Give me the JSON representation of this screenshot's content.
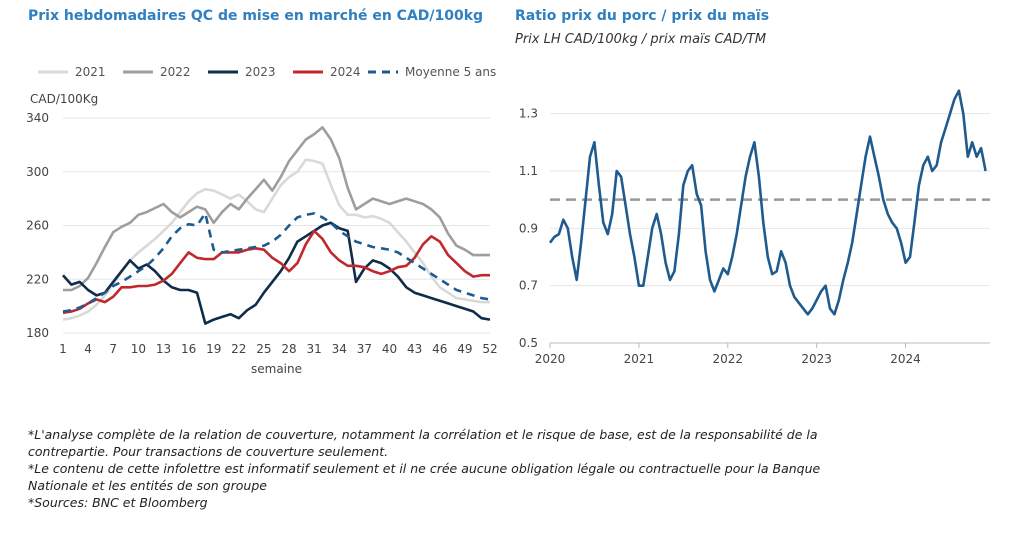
{
  "left_chart_title": "Prix hebdomadaires QC de mise en marché en CAD/100kg",
  "right_chart_title": "Ratio prix du porc / prix du maïs",
  "right_chart_subtitle": "Prix LH CAD/100kg  /  prix maïs CAD/TM",
  "footnotes": [
    "*L'analyse complète de la relation de couverture, notamment la corrélation et le risque de base, est de la responsabilité de la contrepartie. Pour transactions de couverture seulement.",
    "*Le contenu de cette infolettre est informatif seulement et il ne crée aucune obligation légale ou contractuelle pour la Banque Nationale et les entités de son groupe",
    "*Sources: BNC et Bloomberg"
  ],
  "colors": {
    "title": "#2f7fc1",
    "s2021": "#d9d9d9",
    "s2022": "#9e9e9e",
    "s2023": "#0f2d4a",
    "s2024": "#c0282d",
    "avg": "#1f5b8e",
    "ratio": "#1f5b8e",
    "ref": "#999999"
  },
  "chart_data": [
    {
      "type": "line",
      "title": "Prix hebdomadaires QC de mise en marché en CAD/100kg",
      "ylabel": "CAD/100Kg",
      "xlabel": "semaine",
      "ylim": [
        180,
        340
      ],
      "yticks": [
        180,
        220,
        260,
        300,
        340
      ],
      "xticks": [
        1,
        4,
        7,
        10,
        13,
        16,
        19,
        22,
        25,
        28,
        31,
        34,
        37,
        40,
        43,
        46,
        49,
        52
      ],
      "grid": "horizontal",
      "legend_position": "top",
      "x": [
        1,
        2,
        3,
        4,
        5,
        6,
        7,
        8,
        9,
        10,
        11,
        12,
        13,
        14,
        15,
        16,
        17,
        18,
        19,
        20,
        21,
        22,
        23,
        24,
        25,
        26,
        27,
        28,
        29,
        30,
        31,
        32,
        33,
        34,
        35,
        36,
        37,
        38,
        39,
        40,
        41,
        42,
        43,
        44,
        45,
        46,
        47,
        48,
        49,
        50,
        51,
        52
      ],
      "series": [
        {
          "name": "2021",
          "values": [
            190,
            191,
            193,
            196,
            201,
            208,
            216,
            226,
            234,
            240,
            245,
            250,
            256,
            262,
            270,
            278,
            284,
            287,
            286,
            283,
            280,
            283,
            278,
            272,
            270,
            280,
            290,
            296,
            300,
            309,
            308,
            306,
            290,
            275,
            268,
            268,
            266,
            267,
            265,
            262,
            255,
            248,
            240,
            232,
            222,
            214,
            210,
            206,
            205,
            204,
            203,
            203
          ]
        },
        {
          "name": "2022",
          "values": [
            212,
            212,
            215,
            221,
            232,
            244,
            255,
            259,
            262,
            268,
            270,
            273,
            276,
            270,
            266,
            270,
            274,
            272,
            262,
            270,
            276,
            272,
            280,
            287,
            294,
            286,
            296,
            308,
            316,
            324,
            328,
            333,
            324,
            310,
            288,
            272,
            276,
            280,
            278,
            276,
            278,
            280,
            278,
            276,
            272,
            266,
            254,
            245,
            242,
            238,
            238,
            238
          ]
        },
        {
          "name": "2023",
          "values": [
            223,
            216,
            218,
            212,
            208,
            210,
            218,
            226,
            234,
            228,
            231,
            226,
            219,
            214,
            212,
            212,
            210,
            187,
            190,
            192,
            194,
            191,
            197,
            201,
            210,
            218,
            226,
            236,
            248,
            252,
            256,
            260,
            262,
            258,
            256,
            218,
            228,
            234,
            232,
            228,
            222,
            214,
            210,
            208,
            206,
            204,
            202,
            200,
            198,
            196,
            191,
            190
          ]
        },
        {
          "name": "2024",
          "values": [
            195,
            196,
            198,
            202,
            205,
            203,
            207,
            214,
            214,
            215,
            215,
            216,
            219,
            224,
            232,
            240,
            236,
            235,
            235,
            240,
            240,
            240,
            242,
            243,
            242,
            236,
            232,
            226,
            232,
            246,
            256,
            250,
            240,
            234,
            230,
            230,
            229,
            226,
            224,
            226,
            229,
            230,
            236,
            246,
            252,
            248,
            238,
            232,
            226,
            222,
            223,
            223
          ]
        },
        {
          "name": "Moyenne 5 ans",
          "values": [
            196,
            197,
            199,
            202,
            206,
            210,
            215,
            218,
            222,
            226,
            230,
            236,
            243,
            252,
            258,
            261,
            260,
            269,
            242,
            240,
            241,
            242,
            243,
            244,
            245,
            248,
            253,
            260,
            266,
            268,
            269,
            266,
            262,
            256,
            252,
            248,
            246,
            244,
            243,
            242,
            240,
            236,
            232,
            228,
            224,
            220,
            216,
            212,
            210,
            208,
            206,
            205
          ]
        }
      ]
    },
    {
      "type": "line",
      "title": "Ratio prix du porc / prix du maïs",
      "subtitle": "Prix LH CAD/100kg  /  prix maïs CAD/TM",
      "ylim": [
        0.5,
        1.4
      ],
      "yticks": [
        0.5,
        0.7,
        0.9,
        1.1,
        1.3
      ],
      "xticks": [
        "2020",
        "2021",
        "2022",
        "2023",
        "2024"
      ],
      "reference_line": 1.0,
      "grid": "horizontal",
      "x": [
        2020.0,
        2020.05,
        2020.1,
        2020.15,
        2020.2,
        2020.25,
        2020.3,
        2020.35,
        2020.4,
        2020.45,
        2020.5,
        2020.55,
        2020.6,
        2020.65,
        2020.7,
        2020.75,
        2020.8,
        2020.85,
        2020.9,
        2020.95,
        2021.0,
        2021.05,
        2021.1,
        2021.15,
        2021.2,
        2021.25,
        2021.3,
        2021.35,
        2021.4,
        2021.45,
        2021.5,
        2021.55,
        2021.6,
        2021.65,
        2021.7,
        2021.75,
        2021.8,
        2021.85,
        2021.9,
        2021.95,
        2022.0,
        2022.05,
        2022.1,
        2022.15,
        2022.2,
        2022.25,
        2022.3,
        2022.35,
        2022.4,
        2022.45,
        2022.5,
        2022.55,
        2022.6,
        2022.65,
        2022.7,
        2022.75,
        2022.8,
        2022.85,
        2022.9,
        2022.95,
        2023.0,
        2023.05,
        2023.1,
        2023.15,
        2023.2,
        2023.25,
        2023.3,
        2023.35,
        2023.4,
        2023.45,
        2023.5,
        2023.55,
        2023.6,
        2023.65,
        2023.7,
        2023.75,
        2023.8,
        2023.85,
        2023.9,
        2023.95,
        2024.0,
        2024.05,
        2024.1,
        2024.15,
        2024.2,
        2024.25,
        2024.3,
        2024.35,
        2024.4,
        2024.45,
        2024.5,
        2024.55,
        2024.6,
        2024.65,
        2024.7,
        2024.75,
        2024.8,
        2024.85,
        2024.9
      ],
      "values": [
        0.85,
        0.87,
        0.88,
        0.93,
        0.9,
        0.8,
        0.72,
        0.85,
        1.0,
        1.15,
        1.2,
        1.05,
        0.92,
        0.88,
        0.95,
        1.1,
        1.08,
        0.98,
        0.88,
        0.8,
        0.7,
        0.7,
        0.8,
        0.9,
        0.95,
        0.88,
        0.78,
        0.72,
        0.75,
        0.88,
        1.05,
        1.1,
        1.12,
        1.02,
        0.98,
        0.82,
        0.72,
        0.68,
        0.72,
        0.76,
        0.74,
        0.8,
        0.88,
        0.98,
        1.08,
        1.15,
        1.2,
        1.08,
        0.92,
        0.8,
        0.74,
        0.75,
        0.82,
        0.78,
        0.7,
        0.66,
        0.64,
        0.62,
        0.6,
        0.62,
        0.65,
        0.68,
        0.7,
        0.62,
        0.6,
        0.65,
        0.72,
        0.78,
        0.85,
        0.95,
        1.05,
        1.15,
        1.22,
        1.15,
        1.08,
        1.0,
        0.95,
        0.92,
        0.9,
        0.85,
        0.78,
        0.8,
        0.92,
        1.05,
        1.12,
        1.15,
        1.1,
        1.12,
        1.2,
        1.25,
        1.3,
        1.35,
        1.38,
        1.3,
        1.15,
        1.2,
        1.15,
        1.18,
        1.1
      ]
    }
  ]
}
